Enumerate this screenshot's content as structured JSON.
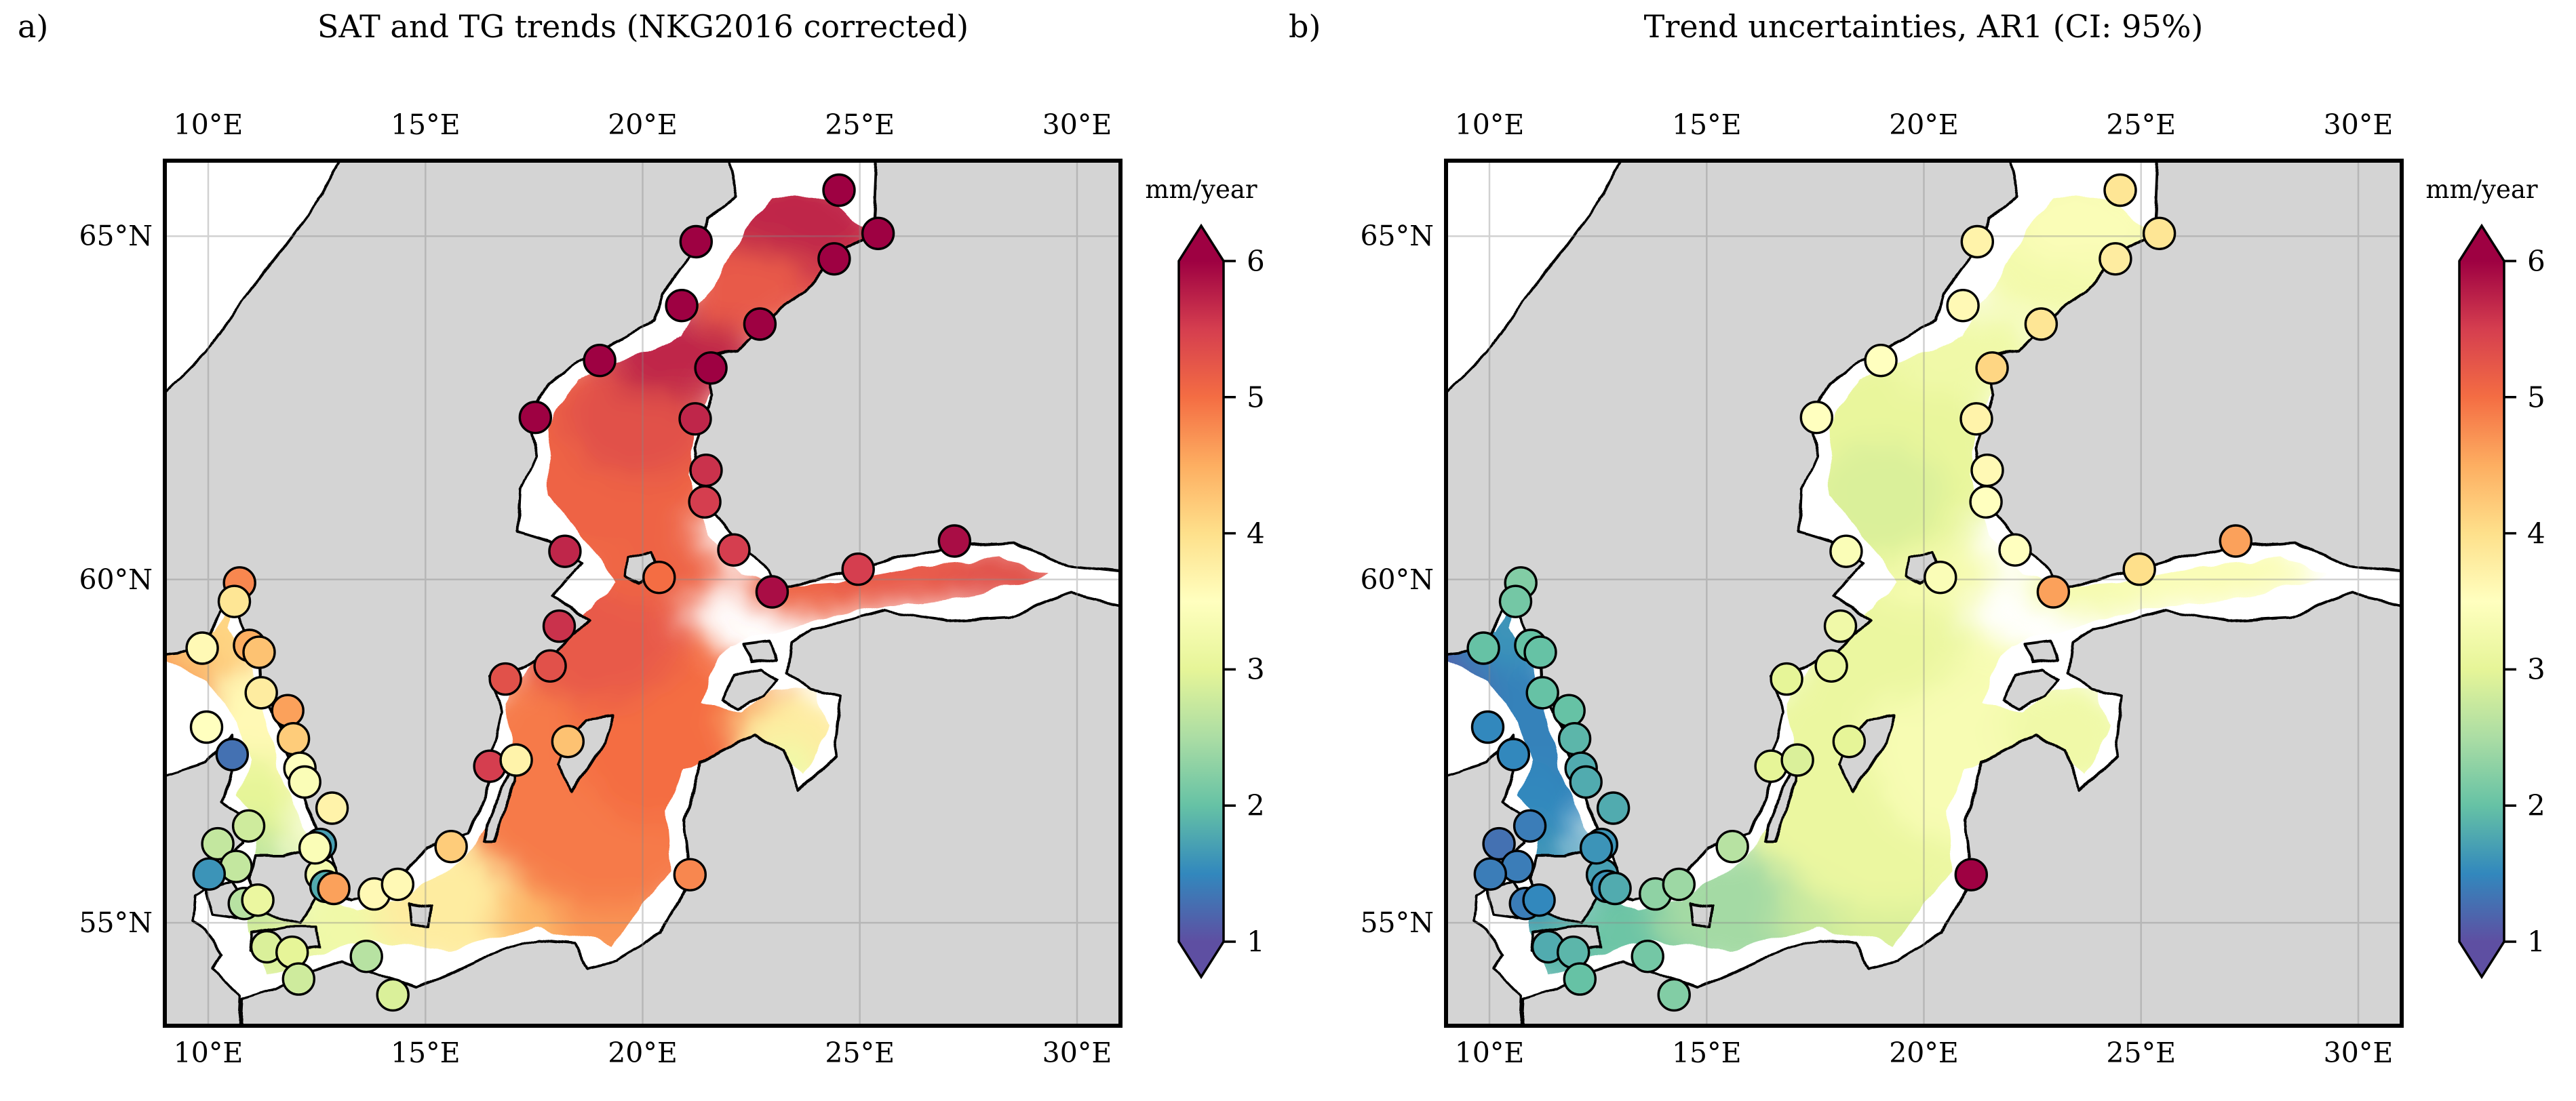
{
  "figure": {
    "panel_a_label": "a)",
    "panel_b_label": "b)",
    "title_a": "SAT and TG trends (NKG2016 corrected)",
    "title_b": "Trend uncertainties, AR1 (CI: 95%)"
  },
  "axes": {
    "lon_tick_labels": [
      "10°E",
      "15°E",
      "20°E",
      "25°E",
      "30°E"
    ],
    "lon_tick_values": [
      10,
      15,
      20,
      25,
      30
    ],
    "lat_tick_labels": [
      "65°N",
      "60°N",
      "55°N"
    ],
    "lat_tick_values": [
      65,
      60,
      55
    ]
  },
  "colorbar": {
    "label": "mm/year",
    "tick_labels": [
      "6",
      "5",
      "4",
      "3",
      "2",
      "1"
    ],
    "tick_values": [
      6,
      5,
      4,
      3,
      2,
      1
    ],
    "vmin": 1,
    "vmax": 6,
    "extend": "both"
  },
  "colormap": {
    "name": "Spectral_r",
    "anchors_value6_to_value1": [
      "#9e0142",
      "#d53e4f",
      "#f46d43",
      "#fdae61",
      "#fee08b",
      "#ffffbf",
      "#e6f598",
      "#abdda4",
      "#66c2a5",
      "#3288bd",
      "#5e4fa2"
    ]
  },
  "colors": {
    "land": "#d4d4d4",
    "sea_no_data": "#ffffff",
    "coastline": "#000000",
    "grid": "#888888",
    "frame": "#000000"
  },
  "chart_data": {
    "type": "heatmap",
    "subtype": "geographic map: sea-surface trend field + tide-gauge scatter circles",
    "map_extent": {
      "lon_min": 9.0,
      "lon_max": 31.0,
      "lat_min": 53.5,
      "lat_max": 66.1
    },
    "units": "mm/year",
    "value_range": [
      1,
      6
    ],
    "panels": [
      {
        "id": "a",
        "title": "SAT and TG trends (NKG2016 corrected)",
        "station_value_key": "trend"
      },
      {
        "id": "b",
        "title": "Trend uncertainties, AR1 (CI: 95%)",
        "station_value_key": "uncertainty"
      }
    ],
    "stations_note": "tide gauges: [lon_deg_E, lat_deg_N, trend_mm_per_year(panel a), uncertainty_mm_per_year(panel b)]",
    "stations": [
      [
        10.72,
        59.95,
        4.8,
        2.2
      ],
      [
        10.6,
        59.68,
        3.9,
        2.1
      ],
      [
        9.86,
        59.0,
        3.6,
        2.0
      ],
      [
        10.95,
        59.04,
        4.5,
        2.0
      ],
      [
        11.17,
        58.94,
        4.3,
        2.0
      ],
      [
        11.22,
        58.35,
        3.8,
        2.0
      ],
      [
        11.83,
        58.09,
        4.6,
        2.0
      ],
      [
        11.96,
        57.68,
        4.2,
        1.9
      ],
      [
        12.11,
        57.25,
        3.5,
        1.8
      ],
      [
        12.22,
        57.05,
        3.4,
        1.8
      ],
      [
        12.85,
        56.67,
        3.7,
        1.8
      ],
      [
        12.58,
        56.14,
        1.7,
        1.6
      ],
      [
        9.96,
        57.85,
        3.5,
        1.5
      ],
      [
        10.55,
        57.45,
        1.3,
        1.5
      ],
      [
        10.93,
        56.41,
        2.8,
        1.4
      ],
      [
        10.22,
        56.15,
        2.7,
        1.3
      ],
      [
        10.64,
        55.82,
        2.7,
        1.4
      ],
      [
        10.02,
        55.71,
        1.6,
        1.4
      ],
      [
        10.83,
        55.28,
        2.6,
        1.4
      ],
      [
        11.14,
        55.33,
        3.1,
        1.5
      ],
      [
        12.6,
        55.7,
        3.3,
        1.7
      ],
      [
        12.71,
        55.53,
        1.8,
        1.6
      ],
      [
        12.89,
        55.5,
        4.6,
        1.8
      ],
      [
        12.46,
        56.09,
        3.4,
        1.6
      ],
      [
        11.35,
        54.65,
        2.9,
        1.8
      ],
      [
        11.93,
        54.57,
        3.0,
        1.9
      ],
      [
        12.08,
        54.18,
        2.8,
        2.0
      ],
      [
        13.64,
        54.51,
        2.6,
        2.1
      ],
      [
        14.25,
        53.95,
        2.9,
        2.2
      ],
      [
        13.82,
        55.42,
        3.6,
        2.3
      ],
      [
        14.36,
        55.56,
        3.6,
        2.4
      ],
      [
        15.59,
        56.11,
        4.2,
        2.6
      ],
      [
        16.48,
        57.28,
        5.5,
        3.0
      ],
      [
        17.09,
        57.37,
        3.7,
        2.9
      ],
      [
        18.28,
        57.64,
        4.3,
        3.0
      ],
      [
        17.87,
        58.74,
        5.3,
        3.1
      ],
      [
        16.84,
        58.55,
        5.3,
        3.0
      ],
      [
        18.08,
        59.32,
        5.6,
        3.2
      ],
      [
        18.21,
        60.41,
        5.7,
        3.4
      ],
      [
        17.53,
        62.36,
        6.0,
        3.5
      ],
      [
        19.01,
        63.19,
        6.0,
        3.5
      ],
      [
        20.9,
        63.99,
        6.0,
        3.6
      ],
      [
        21.23,
        64.92,
        6.0,
        3.7
      ],
      [
        24.52,
        65.67,
        6.0,
        3.9
      ],
      [
        25.42,
        65.04,
        6.0,
        3.9
      ],
      [
        24.41,
        64.67,
        6.0,
        3.8
      ],
      [
        22.7,
        63.72,
        6.0,
        3.9
      ],
      [
        21.57,
        63.08,
        6.0,
        4.1
      ],
      [
        21.21,
        62.34,
        5.7,
        3.7
      ],
      [
        21.46,
        61.59,
        5.6,
        3.6
      ],
      [
        21.43,
        61.13,
        5.5,
        3.5
      ],
      [
        22.1,
        60.43,
        5.5,
        3.5
      ],
      [
        20.38,
        60.03,
        5.0,
        3.4
      ],
      [
        22.98,
        59.82,
        5.9,
        4.6
      ],
      [
        24.96,
        60.15,
        5.5,
        4.0
      ],
      [
        27.18,
        60.56,
        5.9,
        4.6
      ],
      [
        21.09,
        55.7,
        4.8,
        6.0
      ]
    ],
    "field_note": "gridded altimetry field rendered as smooth blobs: [lon, lat, rx_px, ry_px, value_mm_per_year]",
    "field_a": [
      [
        9.2,
        58.7,
        100,
        80,
        5.0
      ],
      [
        10.0,
        59.05,
        80,
        60,
        4.3
      ],
      [
        10.55,
        59.5,
        45,
        70,
        4.1
      ],
      [
        11.25,
        57.6,
        95,
        115,
        3.6
      ],
      [
        10.95,
        56.6,
        75,
        85,
        3.0
      ],
      [
        10.95,
        55.55,
        65,
        95,
        2.7
      ],
      [
        11.65,
        54.55,
        80,
        55,
        2.9
      ],
      [
        12.7,
        55.75,
        35,
        70,
        3.1
      ],
      [
        13.7,
        54.9,
        115,
        75,
        3.2
      ],
      [
        16.1,
        55.25,
        150,
        95,
        3.8
      ],
      [
        18.6,
        55.05,
        130,
        85,
        4.4
      ],
      [
        19.35,
        54.95,
        85,
        65,
        4.7
      ],
      [
        17.6,
        56.8,
        130,
        110,
        4.6
      ],
      [
        19.3,
        57.1,
        230,
        190,
        4.9
      ],
      [
        20.4,
        57.9,
        130,
        150,
        5.0
      ],
      [
        18.95,
        59.15,
        130,
        95,
        5.2
      ],
      [
        22.75,
        58.05,
        65,
        50,
        4.8
      ],
      [
        23.5,
        57.6,
        85,
        75,
        3.8
      ],
      [
        23.3,
        57.25,
        45,
        45,
        3.2
      ],
      [
        24.3,
        59.95,
        130,
        50,
        5.1
      ],
      [
        26.5,
        60.1,
        150,
        50,
        5.2
      ],
      [
        28.4,
        60.05,
        90,
        45,
        5.3
      ],
      [
        20.4,
        60.15,
        95,
        55,
        5.1
      ],
      [
        18.6,
        60.95,
        120,
        85,
        5.0
      ],
      [
        19.3,
        61.8,
        170,
        150,
        5.1
      ],
      [
        19.9,
        62.4,
        110,
        95,
        5.3
      ],
      [
        20.9,
        63.3,
        115,
        65,
        5.7
      ],
      [
        23.3,
        64.9,
        150,
        115,
        5.4
      ],
      [
        23.6,
        65.2,
        115,
        65,
        5.7
      ],
      [
        22.4,
        64.2,
        90,
        65,
        5.2
      ]
    ],
    "field_b": [
      [
        9.3,
        58.55,
        115,
        95,
        1.15
      ],
      [
        10.3,
        59.2,
        75,
        65,
        1.5
      ],
      [
        10.55,
        59.5,
        45,
        70,
        1.6
      ],
      [
        11.15,
        57.5,
        105,
        125,
        1.45
      ],
      [
        10.9,
        56.5,
        75,
        85,
        1.5
      ],
      [
        10.95,
        55.55,
        65,
        95,
        1.6
      ],
      [
        11.7,
        54.55,
        80,
        55,
        1.9
      ],
      [
        12.7,
        55.75,
        35,
        70,
        1.7
      ],
      [
        13.75,
        54.9,
        115,
        75,
        2.05
      ],
      [
        16.1,
        55.2,
        150,
        95,
        2.45
      ],
      [
        18.65,
        55.1,
        130,
        85,
        2.75
      ],
      [
        19.35,
        54.95,
        85,
        65,
        2.9
      ],
      [
        17.6,
        56.8,
        130,
        110,
        3.0
      ],
      [
        19.3,
        57.1,
        230,
        190,
        3.1
      ],
      [
        20.9,
        57.7,
        140,
        160,
        3.35
      ],
      [
        18.95,
        59.15,
        130,
        95,
        3.1
      ],
      [
        23.3,
        57.7,
        95,
        85,
        3.2
      ],
      [
        24.3,
        59.95,
        130,
        50,
        3.3
      ],
      [
        26.6,
        60.1,
        150,
        50,
        3.4
      ],
      [
        20.2,
        60.1,
        95,
        55,
        3.3
      ],
      [
        18.6,
        60.95,
        120,
        85,
        3.0
      ],
      [
        19.2,
        61.8,
        170,
        155,
        3.05
      ],
      [
        19.0,
        61.2,
        95,
        85,
        2.9
      ],
      [
        20.9,
        63.3,
        115,
        65,
        3.2
      ],
      [
        23.3,
        64.9,
        155,
        120,
        3.25
      ],
      [
        23.7,
        65.15,
        105,
        60,
        3.4
      ]
    ]
  }
}
